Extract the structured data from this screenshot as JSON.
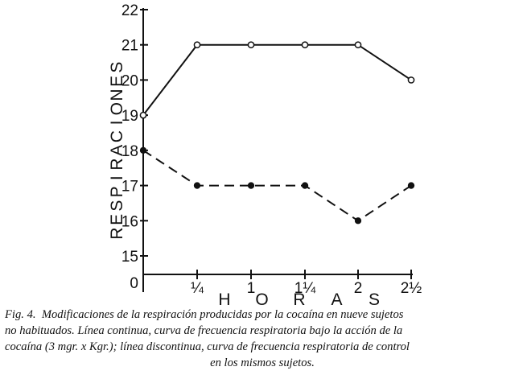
{
  "chart_data": {
    "type": "line",
    "categories": [
      "0",
      "¼",
      "1",
      "1¼",
      "2",
      "2½"
    ],
    "x": [
      0,
      0.25,
      1,
      1.25,
      2,
      2.5
    ],
    "x_positions_index": [
      0,
      1,
      2,
      3,
      4,
      5
    ],
    "series": [
      {
        "values": [
          19,
          21,
          21,
          21,
          21,
          20
        ],
        "style": "solid",
        "marker": "open-circle"
      },
      {
        "values": [
          18,
          17,
          17,
          17,
          16,
          17
        ],
        "style": "dashed",
        "marker": "filled-circle"
      }
    ],
    "ylabel": "RESPIRACIONES",
    "xlabel": "HORAS",
    "ylim": [
      15,
      22
    ],
    "yticks": [
      "15",
      "16",
      "17",
      "18",
      "19",
      "20",
      "21",
      "22"
    ],
    "y_zero_label": "0",
    "grid": false,
    "line_color": "#111111"
  },
  "caption": {
    "fig_label": "Fig. 4.",
    "lines": [
      "Modificaciones de la respiración producidas por la cocaína en nueve sujetos",
      "no habituados.  Línea continua, curva de frecuencia respiratoria bajo la acción de la",
      "cocaína (3 mgr. x Kgr.); línea discontinua, curva de frecuencia respiratoria de control",
      "en los mismos sujetos."
    ]
  }
}
